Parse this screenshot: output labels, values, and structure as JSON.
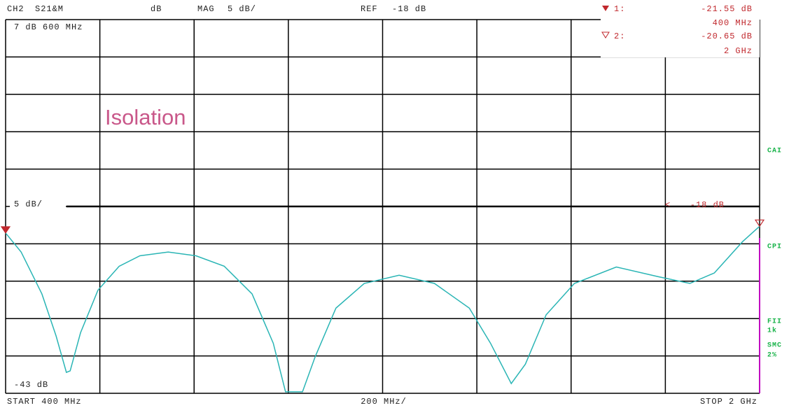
{
  "header": {
    "channel": "CH2",
    "param": "S21&M",
    "unit": "dB",
    "format": "MAG",
    "scale": "5 dB/",
    "ref_label": "REF",
    "ref": "-18 dB"
  },
  "markers": [
    {
      "label": "1:",
      "value": "-21.55 dB",
      "freq": "400 MHz"
    },
    {
      "label": "2:",
      "value": "-20.65 dB",
      "freq": "2 GHz"
    }
  ],
  "side_labels": [
    "CAI",
    "CPI",
    "FII",
    "1k",
    "SMC",
    "2%"
  ],
  "chart_data": {
    "type": "line",
    "title": "Isolation",
    "top_label": "7 dB  600 MHz",
    "bottom_label": "-43 dB",
    "scale_label": "5 dB/",
    "ref_label": "-18 dB",
    "ref_value": -18,
    "footer": {
      "start": "START  400 MHz",
      "span": "200 MHz/",
      "stop": "STOP  2 GHz"
    },
    "xlim": [
      400,
      2000
    ],
    "ylim": [
      -43,
      7
    ],
    "xticks": [
      400,
      600,
      800,
      1000,
      1200,
      1400,
      1600,
      1800,
      2000
    ],
    "yticks": [
      -43,
      -38,
      -33,
      -28,
      -23,
      -18,
      -13,
      -8,
      -3,
      2,
      7
    ],
    "grid": true,
    "series": [
      {
        "color": "#2ab5b5",
        "x": [
          400,
          433,
          477,
          507,
          529,
          537,
          559,
          596,
          641,
          685,
          745,
          804,
          864,
          923,
          968,
          994,
          1030,
          1057,
          1101,
          1161,
          1235,
          1310,
          1384,
          1429,
          1473,
          1503,
          1547,
          1607,
          1696,
          1785,
          1852,
          1904,
          1964,
          2000
        ],
        "values": [
          -21.55,
          -24.1,
          -29.7,
          -35.3,
          -40.2,
          -40.0,
          -34.9,
          -29.2,
          -26.0,
          -24.6,
          -24.1,
          -24.6,
          -26.0,
          -29.7,
          -36.3,
          -42.8,
          -42.8,
          -38.1,
          -31.6,
          -28.3,
          -27.2,
          -28.3,
          -31.6,
          -36.3,
          -41.7,
          -39.1,
          -32.5,
          -28.3,
          -26.1,
          -27.4,
          -28.3,
          -26.9,
          -22.7,
          -20.65
        ]
      }
    ]
  }
}
